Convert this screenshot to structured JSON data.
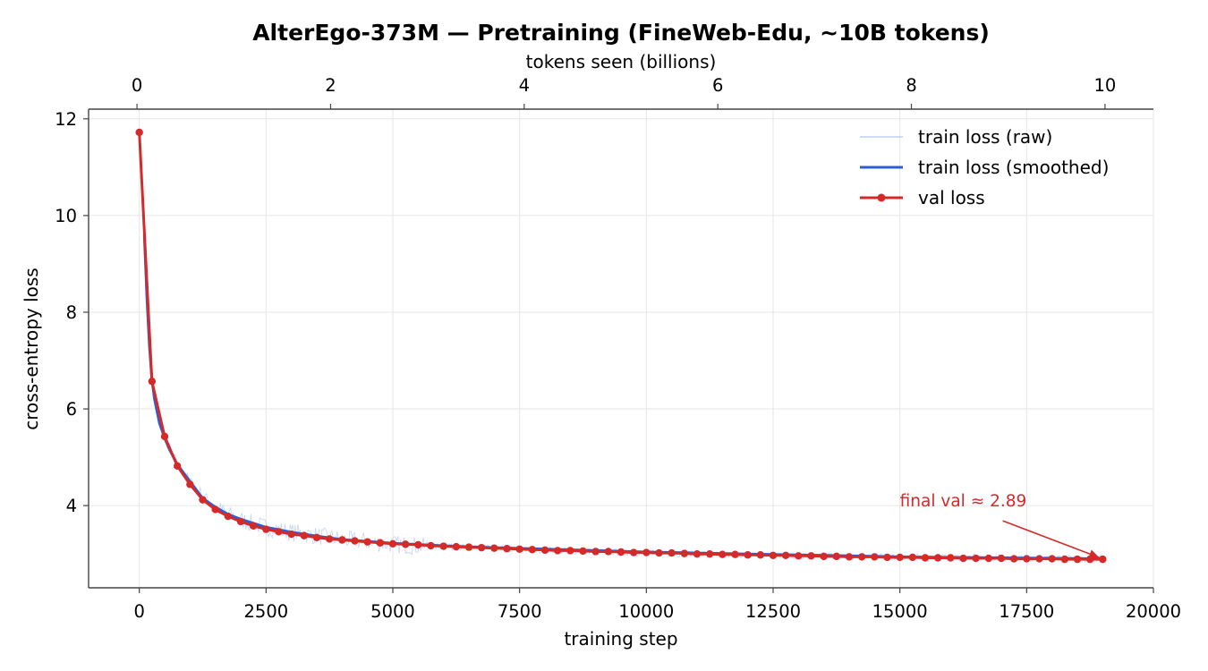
{
  "colors": {
    "raw": "#aec7f0",
    "smoothed": "#2a5fd6",
    "val": "#d42a2a",
    "grid": "#e6e6e6",
    "axis": "#444444"
  },
  "chart_data": {
    "type": "line",
    "title": "AlterEgo-373M — Pretraining (FineWeb-Edu, ~10B tokens)",
    "xlabel": "training step",
    "ylabel": "cross-entropy loss",
    "x2label": "tokens seen (billions)",
    "xlim": [
      -1000,
      20000
    ],
    "ylim": [
      2.3,
      12.2
    ],
    "x2lim": [
      -0.5,
      10.5
    ],
    "xticks": [
      0,
      2500,
      5000,
      7500,
      10000,
      12500,
      15000,
      17500,
      20000
    ],
    "yticks": [
      4,
      6,
      8,
      10,
      12
    ],
    "x2ticks": [
      0,
      2,
      4,
      6,
      8,
      10
    ],
    "grid": true,
    "legend_position": "top-right",
    "legend": [
      "train loss (raw)",
      "train loss (smoothed)",
      "val loss"
    ],
    "series": [
      {
        "name": "train loss (raw)",
        "style": "thin-line",
        "x_range": [
          0,
          19050
        ],
        "note_values": "noisy band around smoothed curve; wider spread 1500-5700 steps",
        "x": [
          0,
          100,
          250,
          500,
          750,
          1000,
          1500,
          2000,
          2500,
          3000,
          4000,
          5000,
          5700,
          6000,
          8000,
          10000,
          12000,
          14000,
          16000,
          18000,
          19050
        ],
        "y": [
          11.7,
          9.6,
          6.4,
          5.4,
          4.85,
          4.5,
          3.95,
          3.7,
          3.55,
          3.45,
          3.3,
          3.2,
          3.15,
          3.15,
          3.08,
          3.02,
          2.98,
          2.95,
          2.93,
          2.91,
          2.9
        ]
      },
      {
        "name": "train loss (smoothed)",
        "style": "line",
        "x": [
          100,
          150,
          200,
          250,
          300,
          400,
          500,
          600,
          750,
          1000,
          1250,
          1500,
          1750,
          2000,
          2500,
          3000,
          3500,
          4000,
          4500,
          5000,
          6000,
          7000,
          8000,
          9000,
          10000,
          11000,
          12000,
          13000,
          14000,
          15000,
          16000,
          17000,
          18000,
          19000
        ],
        "y": [
          9.6,
          8.3,
          7.3,
          6.6,
          6.2,
          5.7,
          5.4,
          5.15,
          4.85,
          4.5,
          4.15,
          3.97,
          3.82,
          3.72,
          3.55,
          3.45,
          3.37,
          3.3,
          3.26,
          3.22,
          3.17,
          3.13,
          3.1,
          3.07,
          3.04,
          3.02,
          3.0,
          2.98,
          2.96,
          2.94,
          2.93,
          2.92,
          2.91,
          2.9
        ]
      },
      {
        "name": "val loss",
        "style": "line-markers",
        "x": [
          0,
          250,
          500,
          750,
          1000,
          1250,
          1500,
          1750,
          2000,
          2250,
          2500,
          2750,
          3000,
          3250,
          3500,
          3750,
          4000,
          4250,
          4500,
          4750,
          5000,
          5250,
          5500,
          5750,
          6000,
          6250,
          6500,
          6750,
          7000,
          7250,
          7500,
          7750,
          8000,
          8250,
          8500,
          8750,
          9000,
          9250,
          9500,
          9750,
          10000,
          10250,
          10500,
          10750,
          11000,
          11250,
          11500,
          11750,
          12000,
          12250,
          12500,
          12750,
          13000,
          13250,
          13500,
          13750,
          14000,
          14250,
          14500,
          14750,
          15000,
          15250,
          15500,
          15750,
          16000,
          16250,
          16500,
          16750,
          17000,
          17250,
          17500,
          17750,
          18000,
          18250,
          18500,
          18750,
          19000
        ],
        "y": [
          11.72,
          6.57,
          5.43,
          4.82,
          4.44,
          4.12,
          3.92,
          3.78,
          3.67,
          3.58,
          3.51,
          3.46,
          3.41,
          3.38,
          3.34,
          3.31,
          3.29,
          3.27,
          3.25,
          3.23,
          3.21,
          3.2,
          3.19,
          3.17,
          3.16,
          3.15,
          3.14,
          3.13,
          3.12,
          3.11,
          3.1,
          3.09,
          3.08,
          3.07,
          3.07,
          3.06,
          3.05,
          3.05,
          3.04,
          3.03,
          3.03,
          3.02,
          3.02,
          3.01,
          3.0,
          3.0,
          2.99,
          2.99,
          2.98,
          2.98,
          2.97,
          2.97,
          2.96,
          2.96,
          2.95,
          2.95,
          2.94,
          2.94,
          2.94,
          2.93,
          2.93,
          2.93,
          2.92,
          2.92,
          2.92,
          2.91,
          2.91,
          2.91,
          2.91,
          2.9,
          2.9,
          2.9,
          2.9,
          2.89,
          2.89,
          2.89,
          2.89
        ]
      }
    ],
    "annotations": [
      {
        "text": "final val ≈ 2.89",
        "x": 19000,
        "y": 2.89,
        "arrow": true,
        "text_at": [
          15000,
          4.0
        ]
      }
    ]
  }
}
